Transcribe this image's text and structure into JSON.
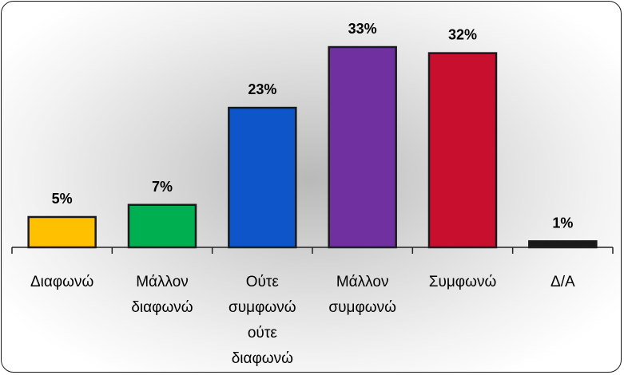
{
  "chart_data": {
    "type": "bar",
    "categories": [
      [
        "Διαφωνώ"
      ],
      [
        "Μάλλον",
        "διαφωνώ"
      ],
      [
        "Ούτε",
        "συμφωνώ",
        "ούτε",
        "διαφωνώ"
      ],
      [
        "Μάλλον",
        "συμφωνώ"
      ],
      [
        "Συμφωνώ"
      ],
      [
        "Δ/Α"
      ]
    ],
    "values": [
      5,
      7,
      23,
      33,
      32,
      1
    ],
    "value_labels": [
      "5%",
      "7%",
      "23%",
      "33%",
      "32%",
      "1%"
    ],
    "colors": [
      "#FFC000",
      "#00B050",
      "#0D55C8",
      "#7030A0",
      "#C8102E",
      "#1a1a1a"
    ],
    "ylim": [
      0,
      33
    ],
    "title": "",
    "xlabel": "",
    "ylabel": "",
    "grid": false,
    "legend": "none"
  }
}
